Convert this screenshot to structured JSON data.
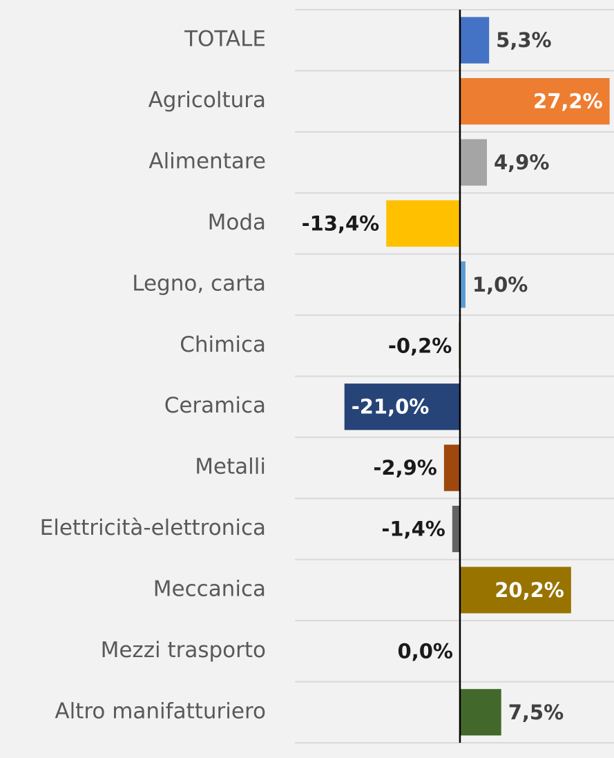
{
  "chart_data": {
    "type": "bar",
    "orientation": "horizontal",
    "categories": [
      "TOTALE",
      "Agricoltura",
      "Alimentare",
      "Moda",
      "Legno, carta",
      "Chimica",
      "Ceramica",
      "Metalli",
      "Elettricità-elettronica",
      "Meccanica",
      "Mezzi trasporto",
      "Altro manifatturiero"
    ],
    "values": [
      5.3,
      27.2,
      4.9,
      -13.4,
      1.0,
      -0.2,
      -21.0,
      -2.9,
      -1.4,
      20.2,
      0.0,
      7.5
    ],
    "value_labels": [
      "5,3%",
      "27,2%",
      "4,9%",
      "-13,4%",
      "1,0%",
      "-0,2%",
      "-21,0%",
      "-2,9%",
      "-1,4%",
      "20,2%",
      "0,0%",
      "7,5%"
    ],
    "colors": [
      "#4472c4",
      "#ed7d31",
      "#a5a5a5",
      "#ffc000",
      "#5b9bd5",
      "#70ad47",
      "#264478",
      "#9e480e",
      "#636363",
      "#997300",
      "#255e91",
      "#43682b"
    ],
    "xlim": [
      -30,
      28
    ]
  }
}
